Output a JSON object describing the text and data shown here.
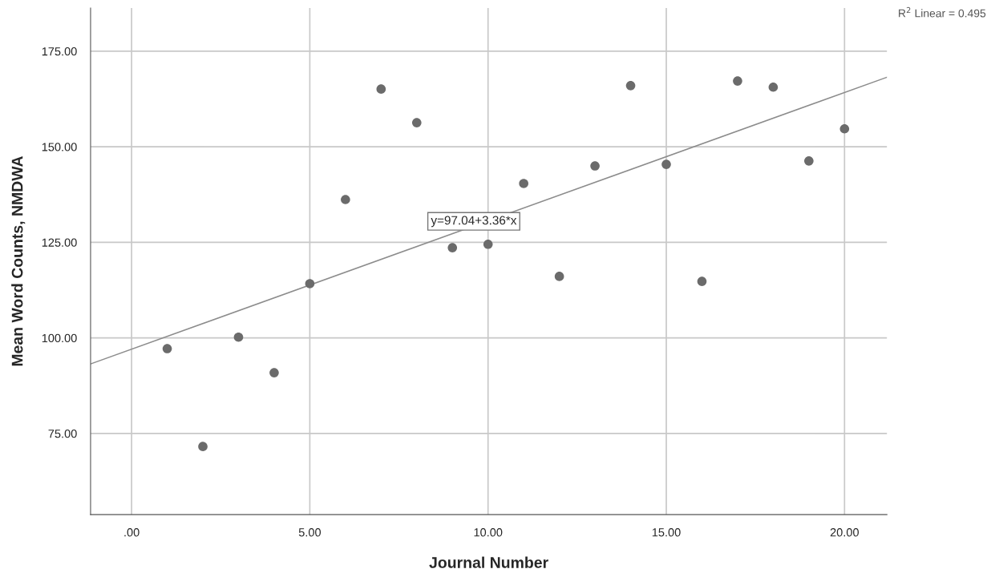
{
  "chart_data": {
    "type": "scatter",
    "xlabel": "Journal Number",
    "ylabel": "Mean Word Counts, NMDWA",
    "x": [
      1,
      2,
      3,
      4,
      5,
      6,
      7,
      8,
      9,
      10,
      11,
      12,
      13,
      14,
      15,
      16,
      17,
      18,
      19,
      20
    ],
    "series": [
      {
        "marker": "circle",
        "color": "#6b6b6b",
        "values": [
          97.2,
          71.6,
          100.2,
          90.9,
          114.2,
          136.2,
          165.1,
          156.3,
          123.6,
          124.5,
          140.4,
          116.1,
          145.0,
          166.0,
          145.4,
          114.8,
          167.2,
          165.6,
          146.3,
          154.7
        ]
      },
      {
        "type": "line",
        "color": "#8c8c8c",
        "x": [
          -1.15,
          21.19
        ],
        "values": [
          93.2,
          168.2
        ]
      }
    ],
    "xlim": [
      -1.15,
      21.19
    ],
    "ylim": [
      53.8,
      186.3
    ],
    "xticks": [
      {
        "value": 0,
        "label": ".00"
      },
      {
        "value": 5,
        "label": "5.00"
      },
      {
        "value": 10,
        "label": "10.00"
      },
      {
        "value": 15,
        "label": "15.00"
      },
      {
        "value": 20,
        "label": "20.00"
      }
    ],
    "yticks": [
      {
        "value": 75,
        "label": "75.00"
      },
      {
        "value": 100,
        "label": "100.00"
      },
      {
        "value": 125,
        "label": "125.00"
      },
      {
        "value": 150,
        "label": "150.00"
      },
      {
        "value": 175,
        "label": "175.00"
      }
    ],
    "grid": true,
    "annotations": [
      {
        "text": "y=97.04+3.36*x",
        "x": 9.6,
        "y": 130.5
      },
      "R$^{2}$ Linear = 0.495"
    ]
  }
}
